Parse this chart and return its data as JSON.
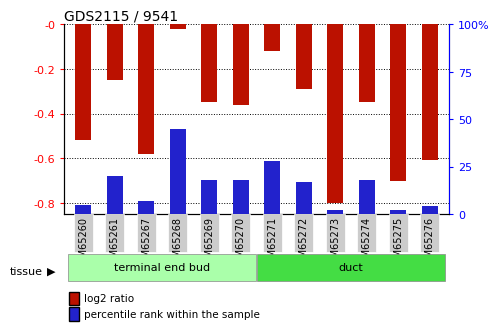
{
  "title": "GDS2115 / 9541",
  "samples": [
    "GSM65260",
    "GSM65261",
    "GSM65267",
    "GSM65268",
    "GSM65269",
    "GSM65270",
    "GSM65271",
    "GSM65272",
    "GSM65273",
    "GSM65274",
    "GSM65275",
    "GSM65276"
  ],
  "log2_ratio": [
    -0.52,
    -0.25,
    -0.58,
    -0.02,
    -0.35,
    -0.36,
    -0.12,
    -0.29,
    -0.8,
    -0.35,
    -0.7,
    -0.61
  ],
  "percentile_rank": [
    5,
    20,
    7,
    45,
    18,
    18,
    28,
    17,
    2,
    18,
    2,
    4
  ],
  "groups": [
    {
      "label": "terminal end bud",
      "start": 0,
      "end": 6,
      "color": "#aaffaa"
    },
    {
      "label": "duct",
      "start": 6,
      "end": 12,
      "color": "#44dd44"
    }
  ],
  "bar_color": "#bb1100",
  "percentile_color": "#2222cc",
  "ylim_left": [
    -0.85,
    0.0
  ],
  "ylim_right": [
    0,
    100
  ],
  "yticks_left": [
    -0.8,
    -0.6,
    -0.4,
    -0.2,
    0.0
  ],
  "ytick_labels_left": [
    "-0.8",
    "-0.6",
    "-0.4",
    "-0.2",
    "-0"
  ],
  "yticks_right": [
    0,
    25,
    50,
    75,
    100
  ],
  "ytick_labels_right": [
    "0",
    "25",
    "50",
    "75",
    "100%"
  ],
  "bg_color": "white",
  "tissue_label": "tissue",
  "legend_red": "log2 ratio",
  "legend_blue": "percentile rank within the sample",
  "bar_width": 0.5,
  "tick_bg_color": "#cccccc"
}
